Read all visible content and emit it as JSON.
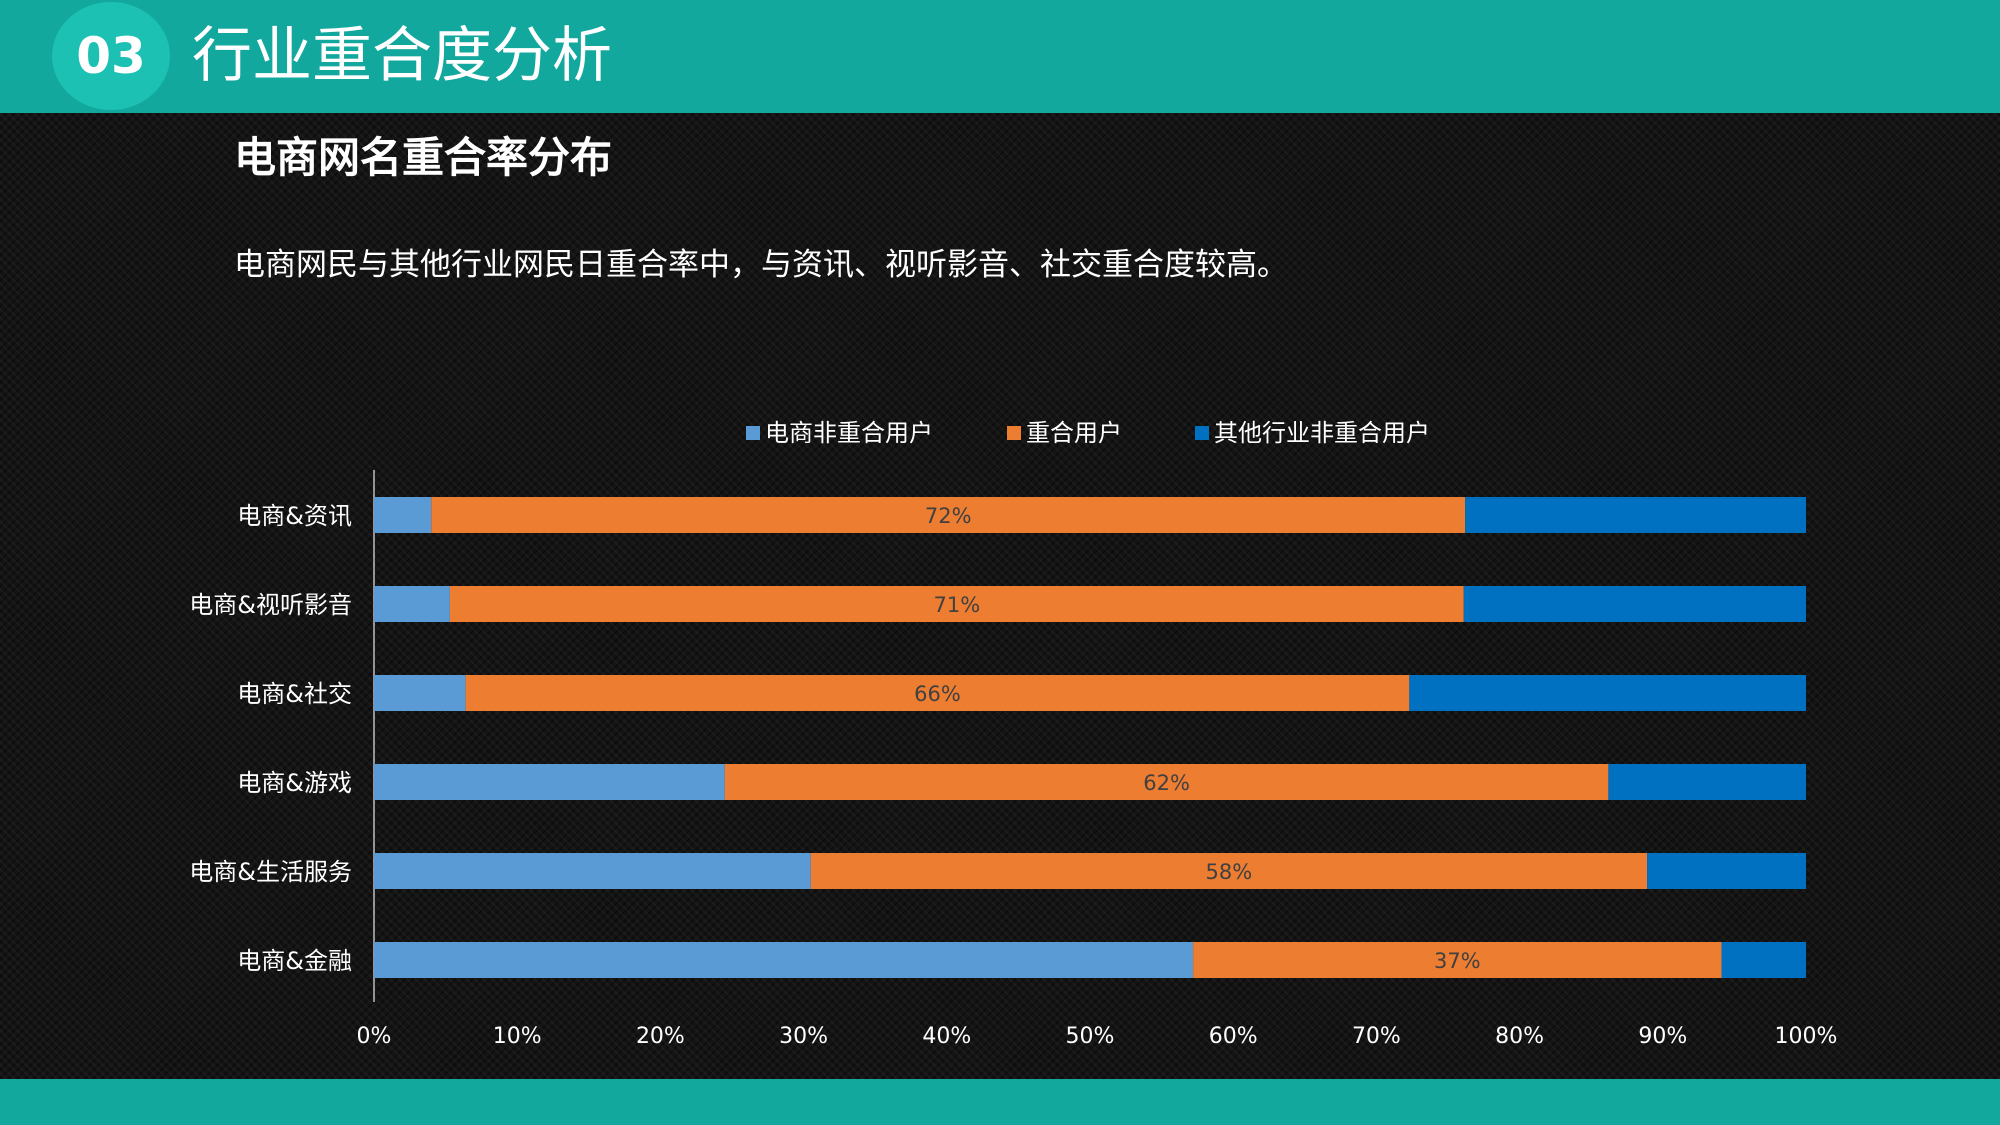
{
  "header": {
    "section_number": "03",
    "section_title": "行业重合度分析"
  },
  "colors": {
    "teal_bar": "#13a89e",
    "badge": "#1cc1b3",
    "series": [
      "#5b9bd5",
      "#ed7d31",
      "#0070c0"
    ]
  },
  "chart_data": {
    "type": "bar",
    "orientation": "horizontal",
    "stacked": "percent",
    "title": "电商网名重合率分布",
    "subtitle": "电商网民与其他行业网民日重合率中，与资讯、视听影音、社交重合度较高。",
    "categories": [
      "电商&资讯",
      "电商&视听影音",
      "电商&社交",
      "电商&游戏",
      "电商&生活服务",
      "电商&金融"
    ],
    "series": [
      {
        "name": "电商非重合用户",
        "values": [
          4,
          5.3,
          6.4,
          24.5,
          30.5,
          57.2
        ]
      },
      {
        "name": "重合用户",
        "values": [
          72.2,
          70.8,
          65.9,
          61.7,
          58.4,
          36.9
        ]
      },
      {
        "name": "其他行业非重合用户",
        "values": [
          23.8,
          23.9,
          27.7,
          13.8,
          11.1,
          5.9
        ]
      }
    ],
    "data_labels": [
      "72%",
      "71%",
      "66%",
      "62%",
      "58%",
      "37%"
    ],
    "x_ticks": [
      "0%",
      "10%",
      "20%",
      "30%",
      "40%",
      "50%",
      "60%",
      "70%",
      "80%",
      "90%",
      "100%"
    ],
    "xlim": [
      0,
      100
    ],
    "legend_position": "top",
    "grid": false
  }
}
